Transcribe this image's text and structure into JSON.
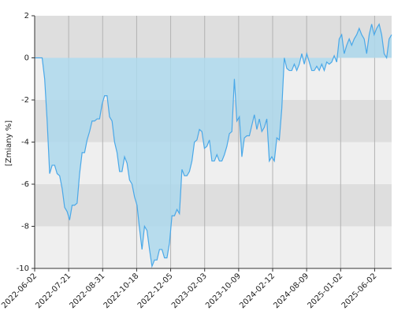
{
  "chart_data": {
    "type": "area",
    "ylabel": "[Zmiany %]",
    "xlabel": "",
    "ylim": [
      -10,
      2
    ],
    "yticks": [
      2,
      0,
      -2,
      -4,
      -6,
      -8,
      -10
    ],
    "ytick_labels": [
      "2",
      "0",
      "-2",
      "-4",
      "-6",
      "-8",
      "-10"
    ],
    "xticks": [
      "2022-06-02",
      "2022-07-21",
      "2022-08-31",
      "2022-10-18",
      "2022-12-05",
      "2023-02-03",
      "2023-10-09",
      "2024-02-12",
      "2024-08-09",
      "2025-01-02",
      "2025-06-02"
    ],
    "bands": {
      "colors": [
        "#dedede",
        "#efefef"
      ]
    },
    "grid": true,
    "colors": {
      "line": "#4aa8e8",
      "fill": "#add8ec",
      "grid": "#b3b3b3",
      "axis": "#333333"
    },
    "series": [
      {
        "values": [
          0,
          0,
          0,
          0,
          -1,
          -3,
          -5.5,
          -5.1,
          -5.1,
          -5.5,
          -5.6,
          -6.2,
          -7.1,
          -7.3,
          -7.7,
          -7,
          -7,
          -6.9,
          -5.5,
          -4.5,
          -4.5,
          -3.9,
          -3.5,
          -3,
          -3,
          -2.9,
          -2.9,
          -2.2,
          -1.8,
          -1.8,
          -2.8,
          -3,
          -4,
          -4.5,
          -5.4,
          -5.4,
          -4.7,
          -5,
          -5.8,
          -6,
          -6.6,
          -7,
          -8.1,
          -9.1,
          -8,
          -8.2,
          -9.1,
          -9.9,
          -9.6,
          -9.6,
          -9.1,
          -9.1,
          -9.5,
          -9.5,
          -8.8,
          -7.5,
          -7.5,
          -7.2,
          -7.4,
          -5.3,
          -5.6,
          -5.6,
          -5.4,
          -4.9,
          -4,
          -3.9,
          -3.4,
          -3.5,
          -4.3,
          -4.2,
          -3.9,
          -4.9,
          -4.9,
          -4.6,
          -4.9,
          -4.9,
          -4.6,
          -4.2,
          -3.6,
          -3.5,
          -1,
          -3,
          -2.8,
          -4.7,
          -3.8,
          -3.7,
          -3.7,
          -3.2,
          -2.7,
          -3.4,
          -2.9,
          -3.5,
          -3.3,
          -2.9,
          -4.9,
          -4.7,
          -4.9,
          -3.8,
          -3.9,
          -2.4,
          0,
          -0.5,
          -0.6,
          -0.6,
          -0.3,
          -0.6,
          -0.3,
          0.2,
          -0.3,
          0.2,
          -0.2,
          -0.6,
          -0.6,
          -0.4,
          -0.6,
          -0.3,
          -0.6,
          -0.2,
          -0.3,
          -0.2,
          0.1,
          -0.2,
          0.9,
          1.1,
          0.2,
          0.6,
          0.9,
          0.6,
          0.9,
          1.1,
          1.4,
          1.1,
          0.9,
          0.2,
          1.1,
          1.6,
          1.1,
          1.4,
          1.6,
          1.1,
          0.2,
          0,
          0.9,
          1.1
        ]
      }
    ]
  }
}
